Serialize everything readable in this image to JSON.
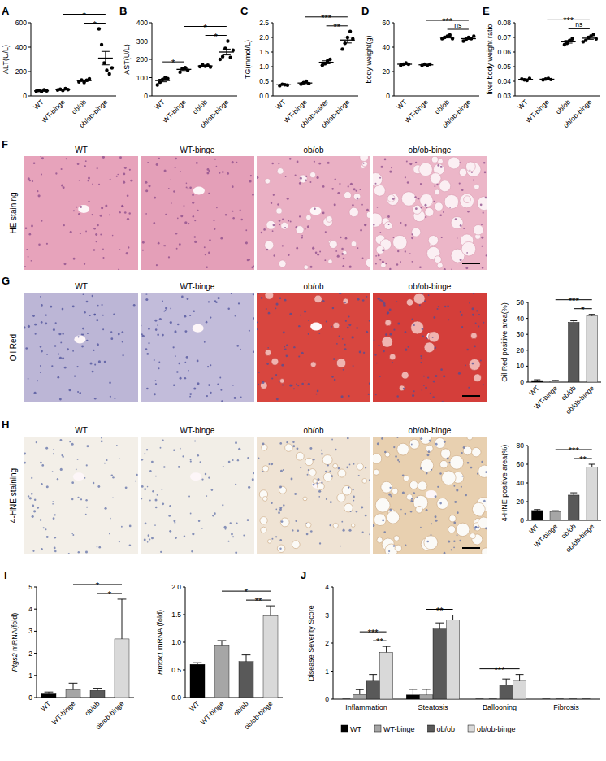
{
  "chart_data": [
    {
      "panel": "A",
      "type": "dot",
      "y_label": "ALT(U/L)",
      "categories": [
        "WT",
        "WT-binge",
        "ob/ob",
        "ob/ob-binge"
      ],
      "points": [
        [
          38,
          45,
          35,
          50,
          42
        ],
        [
          48,
          55,
          45,
          60,
          52
        ],
        [
          115,
          130,
          110,
          128,
          140
        ],
        [
          550,
          420,
          270,
          210,
          180,
          230
        ]
      ],
      "values": [
        42,
        52,
        125,
        310
      ],
      "errors": [
        3,
        3,
        6,
        55
      ],
      "color": "#000000",
      "ylim": [
        0,
        600
      ],
      "yticks": [
        0,
        200,
        400,
        600
      ],
      "grid": false,
      "annotations": [
        {
          "from": 2,
          "to": 3,
          "text": "*"
        },
        {
          "from": 1,
          "to": 3,
          "text": "*"
        }
      ]
    },
    {
      "panel": "B",
      "type": "dot",
      "y_label": "AST(U/L)",
      "categories": [
        "WT",
        "WT-binge",
        "ob/ob",
        "ob/ob-binge"
      ],
      "points": [
        [
          60,
          75,
          90,
          100,
          95
        ],
        [
          130,
          150,
          155,
          140
        ],
        [
          160,
          170,
          162,
          168,
          158
        ],
        [
          200,
          215,
          260,
          300,
          210,
          250
        ]
      ],
      "values": [
        84,
        145,
        164,
        240
      ],
      "errors": [
        7,
        6,
        2,
        16
      ],
      "color": "#000000",
      "ylim": [
        0,
        400
      ],
      "yticks": [
        0,
        100,
        200,
        300,
        400
      ],
      "grid": false,
      "annotations": [
        {
          "from": 0,
          "to": 1,
          "text": "*"
        },
        {
          "from": 2,
          "to": 3,
          "text": "*"
        },
        {
          "from": 1,
          "to": 3,
          "text": "*"
        }
      ]
    },
    {
      "panel": "C",
      "type": "dot",
      "y_label": "TG(mmol/L)",
      "categories": [
        "WT",
        "WT-binge",
        "ob/ob-water",
        "ob/ob-binge"
      ],
      "points": [
        [
          0.35,
          0.4,
          0.38,
          0.37
        ],
        [
          0.4,
          0.45,
          0.5,
          0.42
        ],
        [
          1.05,
          1.1,
          1.2,
          1.25
        ],
        [
          1.6,
          1.8,
          2.0,
          2.2,
          1.95
        ]
      ],
      "values": [
        0.38,
        0.44,
        1.15,
        1.91
      ],
      "errors": [
        0.01,
        0.02,
        0.05,
        0.1
      ],
      "color": "#000000",
      "ylim": [
        0,
        2.5
      ],
      "yticks": [
        {
          "value": 0,
          "label": "0.0"
        },
        0.5,
        {
          "value": 1,
          "label": "1.0"
        },
        1.5,
        {
          "value": 2,
          "label": "2.0"
        },
        2.5
      ],
      "grid": false,
      "annotations": [
        {
          "from": 2,
          "to": 3,
          "text": "**"
        },
        {
          "from": 1,
          "to": 3,
          "text": "***"
        }
      ]
    },
    {
      "panel": "D",
      "type": "dot",
      "y_label": "body weight(g)",
      "categories": [
        "WT",
        "WT-binge",
        "ob/ob",
        "ob/ob-binge"
      ],
      "points": [
        [
          25,
          26,
          27,
          26
        ],
        [
          25,
          26,
          25,
          26
        ],
        [
          47,
          48,
          49,
          50,
          47
        ],
        [
          45,
          46,
          48,
          47,
          49
        ]
      ],
      "values": [
        26,
        25.5,
        48.2,
        47
      ],
      "errors": [
        0.4,
        0.3,
        0.6,
        0.7
      ],
      "color": "#000000",
      "ylim": [
        0,
        60
      ],
      "yticks": [
        0,
        20,
        40,
        60
      ],
      "grid": false,
      "annotations": [
        {
          "from": 2,
          "to": 3,
          "text": "ns"
        },
        {
          "from": 1,
          "to": 3,
          "text": "***"
        }
      ]
    },
    {
      "panel": "E",
      "type": "dot",
      "y_label": "liver body weight ratio",
      "categories": [
        "WT",
        "WT-binge",
        "ob/ob",
        "ob/ob-binge"
      ],
      "points": [
        [
          0.0415,
          0.041,
          0.0405,
          0.042
        ],
        [
          0.041,
          0.0415,
          0.042,
          0.0412
        ],
        [
          0.065,
          0.066,
          0.068,
          0.069
        ],
        [
          0.067,
          0.068,
          0.07,
          0.071,
          0.072,
          0.069
        ]
      ],
      "values": [
        0.0413,
        0.0414,
        0.067,
        0.0695
      ],
      "errors": [
        0.0003,
        0.0002,
        0.0009,
        0.0008
      ],
      "color": "#000000",
      "ylim": [
        0.03,
        0.08
      ],
      "yticks": [
        0.03,
        0.04,
        0.05,
        0.06,
        0.07,
        0.08
      ],
      "grid": false,
      "annotations": [
        {
          "from": 2,
          "to": 3,
          "text": "ns"
        },
        {
          "from": 1,
          "to": 3,
          "text": "***"
        }
      ]
    },
    {
      "type": "bar",
      "y_label": "Oil Red positive area(%)",
      "categories": [
        "WT",
        "WT-binge",
        "ob/ob",
        "ob/ob-binge"
      ],
      "values": [
        1,
        0.8,
        37.5,
        41.5
      ],
      "errors": [
        0.5,
        0.3,
        1,
        1
      ],
      "colors": [
        "#000000",
        "#a6a6a6",
        "#595959",
        "#d9d9d9"
      ],
      "ylim": [
        0,
        50
      ],
      "yticks": [
        0,
        10,
        20,
        30,
        40,
        50
      ],
      "grid": false,
      "annotations": [
        {
          "from": 2,
          "to": 3,
          "text": "*"
        },
        {
          "from": 1,
          "to": 3,
          "text": "***"
        }
      ]
    },
    {
      "type": "bar",
      "y_label": "4-HNE positive area(%)",
      "categories": [
        "WT",
        "WT-binge",
        "ob/ob",
        "ob/ob-binge"
      ],
      "values": [
        10.5,
        9.5,
        27,
        57
      ],
      "errors": [
        1,
        0.8,
        2.5,
        3
      ],
      "colors": [
        "#000000",
        "#a6a6a6",
        "#595959",
        "#d9d9d9"
      ],
      "ylim": [
        0,
        80
      ],
      "yticks": [
        0,
        20,
        40,
        60,
        80
      ],
      "grid": false,
      "annotations": [
        {
          "from": 2,
          "to": 3,
          "text": "**"
        },
        {
          "from": 1,
          "to": 3,
          "text": "***"
        }
      ]
    },
    {
      "panel": "I",
      "type": "bar",
      "y_label": "Ptgs2 mRNA(fold)",
      "categories": [
        "WT",
        "WT-binge",
        "ob/ob",
        "ob/ob-binge"
      ],
      "values": [
        0.2,
        0.35,
        0.32,
        2.65
      ],
      "errors": [
        0.05,
        0.3,
        0.1,
        1.8
      ],
      "colors": [
        "#000000",
        "#a6a6a6",
        "#595959",
        "#d9d9d9"
      ],
      "ylim": [
        0,
        5
      ],
      "yticks": [
        0,
        1,
        2,
        3,
        4,
        5
      ],
      "grid": false,
      "annotations": [
        {
          "from": 2,
          "to": 3,
          "text": "*"
        },
        {
          "from": 1,
          "to": 3,
          "text": "*"
        }
      ]
    },
    {
      "type": "bar",
      "y_label": "Hmox1 mRNA (fold)",
      "categories": [
        "WT",
        "WT-binge",
        "ob/ob",
        "ob/ob-binge"
      ],
      "values": [
        0.6,
        0.95,
        0.65,
        1.48
      ],
      "errors": [
        0.03,
        0.08,
        0.12,
        0.18
      ],
      "colors": [
        "#000000",
        "#a6a6a6",
        "#595959",
        "#d9d9d9"
      ],
      "ylim": [
        0,
        2
      ],
      "yticks": [
        {
          "value": 0,
          "label": "0.0"
        },
        0.5,
        {
          "value": 1,
          "label": "1.0"
        },
        1.5,
        {
          "value": 2,
          "label": "2.0"
        }
      ],
      "grid": false,
      "annotations": [
        {
          "from": 2,
          "to": 3,
          "text": "**"
        },
        {
          "from": 1,
          "to": 3,
          "text": "*"
        }
      ]
    },
    {
      "panel": "J",
      "type": "bar",
      "y_label": "Disease Severity Score",
      "categories": [
        "Inflammation",
        "Steatosis",
        "Ballooning",
        "Fibrosis"
      ],
      "series": [
        {
          "name": "WT",
          "color": "#000000",
          "values": [
            0,
            0.15,
            0,
            0
          ],
          "errors": [
            0,
            0.2,
            0,
            0
          ]
        },
        {
          "name": "WT-binge",
          "color": "#a6a6a6",
          "values": [
            0.17,
            0.15,
            0,
            0
          ],
          "errors": [
            0.17,
            0.2,
            0,
            0
          ]
        },
        {
          "name": "ob/ob",
          "color": "#595959",
          "values": [
            0.67,
            2.5,
            0.5,
            0
          ],
          "errors": [
            0.21,
            0.22,
            0.22,
            0
          ]
        },
        {
          "name": "ob/ob-binge",
          "color": "#d9d9d9",
          "values": [
            1.67,
            2.83,
            0.67,
            0
          ],
          "errors": [
            0.21,
            0.17,
            0.21,
            0
          ]
        }
      ],
      "ylim": [
        0,
        4
      ],
      "yticks": [
        0,
        1,
        2,
        3,
        4
      ],
      "grid": false,
      "legend": "bottom",
      "annotations": [
        {
          "category": 0,
          "from": 2,
          "to": 3,
          "text": "**"
        },
        {
          "category": 0,
          "from": 1,
          "to": 3,
          "text": "***"
        },
        {
          "category": 1,
          "from": 1,
          "to": 3,
          "text": "**"
        },
        {
          "category": 2,
          "from": 0,
          "to": 3,
          "text": "***"
        }
      ]
    }
  ],
  "image_panels": [
    {
      "panel": "F",
      "stain": "HE staining",
      "titles": [
        "WT",
        "WT-binge",
        "ob/ob",
        "ob/ob-binge"
      ]
    },
    {
      "panel": "G",
      "stain": "Oil Red",
      "titles": [
        "WT",
        "WT-binge",
        "ob/ob",
        "ob/ob-binge"
      ]
    },
    {
      "panel": "H",
      "stain": "4-HNE staining",
      "titles": [
        "WT",
        "WT-binge",
        "ob/ob",
        "ob/ob-binge"
      ]
    }
  ]
}
